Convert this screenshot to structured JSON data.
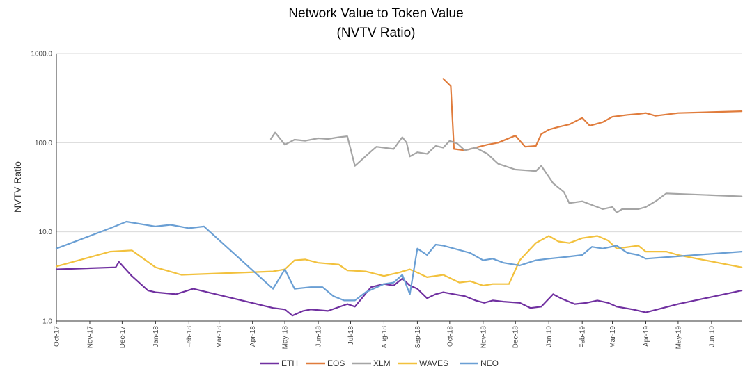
{
  "chart_data": {
    "type": "line",
    "title": "Network Value to Token Value",
    "subtitle": "(NVTV Ratio)",
    "ylabel": "NVTV Ratio",
    "xlabel": "",
    "y_scale": "log",
    "ylim": [
      1,
      1000
    ],
    "y_ticks": [
      "1.0",
      "10.0",
      "100.0",
      "1000.0"
    ],
    "x_ticks": [
      "Oct-17",
      "Nov-17",
      "Dec-17",
      "Jan-18",
      "Feb-18",
      "Mar-18",
      "Apr-18",
      "May-18",
      "Jun-18",
      "Jul-18",
      "Aug-18",
      "Sep-18",
      "Oct-18",
      "Nov-18",
      "Dec-18",
      "Jan-19",
      "Feb-19",
      "Mar-19",
      "Apr-19",
      "May-19",
      "Jun-19"
    ],
    "grid": "horizontal",
    "legend": "bottom",
    "series": [
      {
        "name": "ETH",
        "color": "#7030a0",
        "points": [
          [
            "2017-10-01",
            3.8
          ],
          [
            "2017-11-25",
            4.0
          ],
          [
            "2017-11-28",
            4.6
          ],
          [
            "2017-12-10",
            3.2
          ],
          [
            "2017-12-25",
            2.2
          ],
          [
            "2018-01-01",
            2.1
          ],
          [
            "2018-01-20",
            2.0
          ],
          [
            "2018-02-05",
            2.3
          ],
          [
            "2018-04-20",
            1.4
          ],
          [
            "2018-05-01",
            1.35
          ],
          [
            "2018-05-08",
            1.15
          ],
          [
            "2018-05-18",
            1.3
          ],
          [
            "2018-05-25",
            1.35
          ],
          [
            "2018-06-10",
            1.3
          ],
          [
            "2018-06-28",
            1.55
          ],
          [
            "2018-07-05",
            1.45
          ],
          [
            "2018-07-20",
            2.4
          ],
          [
            "2018-08-01",
            2.6
          ],
          [
            "2018-08-10",
            2.5
          ],
          [
            "2018-08-18",
            3.0
          ],
          [
            "2018-08-25",
            2.5
          ],
          [
            "2018-09-01",
            2.3
          ],
          [
            "2018-09-10",
            1.8
          ],
          [
            "2018-09-18",
            2.0
          ],
          [
            "2018-09-25",
            2.1
          ],
          [
            "2018-10-05",
            2.0
          ],
          [
            "2018-10-15",
            1.9
          ],
          [
            "2018-10-25",
            1.7
          ],
          [
            "2018-11-02",
            1.6
          ],
          [
            "2018-11-10",
            1.7
          ],
          [
            "2018-11-20",
            1.65
          ],
          [
            "2018-12-05",
            1.6
          ],
          [
            "2018-12-15",
            1.4
          ],
          [
            "2018-12-25",
            1.45
          ],
          [
            "2019-01-05",
            2.0
          ],
          [
            "2019-01-12",
            1.8
          ],
          [
            "2019-01-25",
            1.55
          ],
          [
            "2019-02-05",
            1.6
          ],
          [
            "2019-02-15",
            1.7
          ],
          [
            "2019-02-25",
            1.6
          ],
          [
            "2019-03-05",
            1.45
          ],
          [
            "2019-03-20",
            1.35
          ],
          [
            "2019-04-01",
            1.25
          ],
          [
            "2019-05-01",
            1.55
          ],
          [
            "2019-06-29",
            2.2
          ]
        ]
      },
      {
        "name": "EOS",
        "color": "#e07c3c",
        "points": [
          [
            "2018-09-25",
            520
          ],
          [
            "2018-10-02",
            430
          ],
          [
            "2018-10-05",
            85
          ],
          [
            "2018-10-15",
            82
          ],
          [
            "2018-10-25",
            88
          ],
          [
            "2018-11-05",
            95
          ],
          [
            "2018-11-15",
            100
          ],
          [
            "2018-12-01",
            120
          ],
          [
            "2018-12-10",
            90
          ],
          [
            "2018-12-20",
            92
          ],
          [
            "2018-12-25",
            125
          ],
          [
            "2019-01-01",
            140
          ],
          [
            "2019-01-10",
            150
          ],
          [
            "2019-01-20",
            160
          ],
          [
            "2019-02-01",
            190
          ],
          [
            "2019-02-08",
            155
          ],
          [
            "2019-02-20",
            170
          ],
          [
            "2019-03-01",
            195
          ],
          [
            "2019-03-15",
            205
          ],
          [
            "2019-03-25",
            210
          ],
          [
            "2019-04-01",
            215
          ],
          [
            "2019-04-10",
            200
          ],
          [
            "2019-05-01",
            215
          ],
          [
            "2019-06-29",
            225
          ]
        ]
      },
      {
        "name": "XLM",
        "color": "#a5a5a5",
        "points": [
          [
            "2018-04-18",
            110
          ],
          [
            "2018-04-22",
            130
          ],
          [
            "2018-05-01",
            95
          ],
          [
            "2018-05-10",
            108
          ],
          [
            "2018-05-20",
            105
          ],
          [
            "2018-06-01",
            112
          ],
          [
            "2018-06-10",
            110
          ],
          [
            "2018-06-20",
            115
          ],
          [
            "2018-06-28",
            118
          ],
          [
            "2018-07-05",
            55
          ],
          [
            "2018-07-20",
            80
          ],
          [
            "2018-07-25",
            90
          ],
          [
            "2018-08-10",
            85
          ],
          [
            "2018-08-18",
            115
          ],
          [
            "2018-08-22",
            100
          ],
          [
            "2018-08-25",
            70
          ],
          [
            "2018-09-01",
            78
          ],
          [
            "2018-09-10",
            75
          ],
          [
            "2018-09-18",
            92
          ],
          [
            "2018-09-25",
            88
          ],
          [
            "2018-10-01",
            105
          ],
          [
            "2018-10-08",
            98
          ],
          [
            "2018-10-15",
            82
          ],
          [
            "2018-10-25",
            88
          ],
          [
            "2018-11-05",
            75
          ],
          [
            "2018-11-15",
            58
          ],
          [
            "2018-12-01",
            50
          ],
          [
            "2018-12-20",
            48
          ],
          [
            "2018-12-25",
            55
          ],
          [
            "2019-01-05",
            35
          ],
          [
            "2019-01-15",
            28
          ],
          [
            "2019-01-20",
            21
          ],
          [
            "2019-02-01",
            22
          ],
          [
            "2019-02-10",
            20
          ],
          [
            "2019-02-20",
            18
          ],
          [
            "2019-03-01",
            19
          ],
          [
            "2019-03-05",
            16.5
          ],
          [
            "2019-03-10",
            18
          ],
          [
            "2019-03-25",
            18
          ],
          [
            "2019-04-01",
            19
          ],
          [
            "2019-04-10",
            22
          ],
          [
            "2019-04-20",
            27
          ],
          [
            "2019-06-29",
            25
          ]
        ]
      },
      {
        "name": "WAVES",
        "color": "#f2c13d",
        "points": [
          [
            "2017-10-01",
            4.1
          ],
          [
            "2017-11-20",
            6.0
          ],
          [
            "2017-12-10",
            6.2
          ],
          [
            "2018-01-01",
            4.0
          ],
          [
            "2018-01-25",
            3.3
          ],
          [
            "2018-04-20",
            3.6
          ],
          [
            "2018-05-01",
            3.8
          ],
          [
            "2018-05-10",
            4.8
          ],
          [
            "2018-05-20",
            4.9
          ],
          [
            "2018-06-01",
            4.5
          ],
          [
            "2018-06-20",
            4.3
          ],
          [
            "2018-06-28",
            3.7
          ],
          [
            "2018-07-15",
            3.6
          ],
          [
            "2018-08-01",
            3.2
          ],
          [
            "2018-08-15",
            3.5
          ],
          [
            "2018-08-25",
            3.8
          ],
          [
            "2018-09-01",
            3.5
          ],
          [
            "2018-09-10",
            3.1
          ],
          [
            "2018-09-25",
            3.3
          ],
          [
            "2018-10-10",
            2.7
          ],
          [
            "2018-10-20",
            2.8
          ],
          [
            "2018-11-01",
            2.5
          ],
          [
            "2018-11-10",
            2.6
          ],
          [
            "2018-11-25",
            2.6
          ],
          [
            "2018-12-05",
            4.8
          ],
          [
            "2018-12-20",
            7.5
          ],
          [
            "2019-01-01",
            9.0
          ],
          [
            "2019-01-10",
            7.8
          ],
          [
            "2019-01-20",
            7.5
          ],
          [
            "2019-02-01",
            8.5
          ],
          [
            "2019-02-15",
            9.0
          ],
          [
            "2019-02-25",
            8.0
          ],
          [
            "2019-03-05",
            6.5
          ],
          [
            "2019-03-25",
            7.0
          ],
          [
            "2019-04-01",
            6.0
          ],
          [
            "2019-04-20",
            6.0
          ],
          [
            "2019-05-01",
            5.5
          ],
          [
            "2019-06-29",
            4.0
          ]
        ]
      },
      {
        "name": "NEO",
        "color": "#6a9fd4",
        "points": [
          [
            "2017-10-01",
            6.5
          ],
          [
            "2017-11-20",
            11.0
          ],
          [
            "2017-12-05",
            13.0
          ],
          [
            "2018-01-01",
            11.5
          ],
          [
            "2018-01-15",
            12.0
          ],
          [
            "2018-02-01",
            11.0
          ],
          [
            "2018-02-15",
            11.5
          ],
          [
            "2018-04-20",
            2.3
          ],
          [
            "2018-05-01",
            3.8
          ],
          [
            "2018-05-10",
            2.3
          ],
          [
            "2018-05-25",
            2.4
          ],
          [
            "2018-06-05",
            2.4
          ],
          [
            "2018-06-15",
            1.9
          ],
          [
            "2018-06-25",
            1.7
          ],
          [
            "2018-07-05",
            1.7
          ],
          [
            "2018-07-15",
            2.1
          ],
          [
            "2018-08-01",
            2.6
          ],
          [
            "2018-08-10",
            2.7
          ],
          [
            "2018-08-18",
            3.3
          ],
          [
            "2018-08-25",
            2.0
          ],
          [
            "2018-09-01",
            6.5
          ],
          [
            "2018-09-10",
            5.5
          ],
          [
            "2018-09-18",
            7.2
          ],
          [
            "2018-09-25",
            7.0
          ],
          [
            "2018-10-05",
            6.5
          ],
          [
            "2018-10-20",
            5.8
          ],
          [
            "2018-11-01",
            4.8
          ],
          [
            "2018-11-10",
            5.0
          ],
          [
            "2018-11-20",
            4.5
          ],
          [
            "2018-12-05",
            4.2
          ],
          [
            "2018-12-20",
            4.8
          ],
          [
            "2019-01-01",
            5.0
          ],
          [
            "2019-01-15",
            5.2
          ],
          [
            "2019-02-01",
            5.5
          ],
          [
            "2019-02-10",
            6.8
          ],
          [
            "2019-02-20",
            6.5
          ],
          [
            "2019-03-05",
            7.0
          ],
          [
            "2019-03-15",
            5.8
          ],
          [
            "2019-03-25",
            5.5
          ],
          [
            "2019-04-01",
            5.0
          ],
          [
            "2019-04-20",
            5.2
          ],
          [
            "2019-06-29",
            6.0
          ]
        ]
      }
    ]
  }
}
